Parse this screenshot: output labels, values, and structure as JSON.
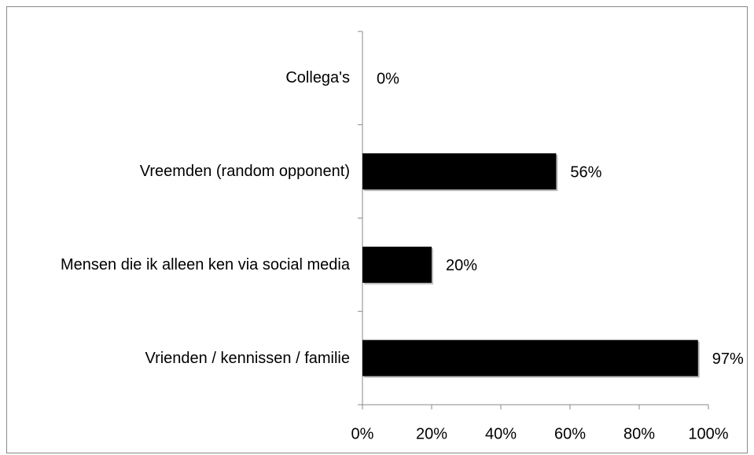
{
  "chart_data": {
    "type": "barh",
    "categories": [
      "Collega's",
      "Vreemden (random opponent)",
      "Mensen die ik alleen ken via social media",
      "Vrienden / kennissen / familie"
    ],
    "values": [
      0,
      56,
      20,
      97
    ],
    "value_labels": [
      "0%",
      "56%",
      "20%",
      "97%"
    ],
    "color": "#000000",
    "xlim": [
      0,
      100
    ],
    "xticks": [
      {
        "value": 0,
        "label": "0%"
      },
      {
        "value": 20,
        "label": "20%"
      },
      {
        "value": 40,
        "label": "40%"
      },
      {
        "value": 60,
        "label": "60%"
      },
      {
        "value": 80,
        "label": "80%"
      },
      {
        "value": 100,
        "label": "100%"
      }
    ],
    "grid": false
  }
}
